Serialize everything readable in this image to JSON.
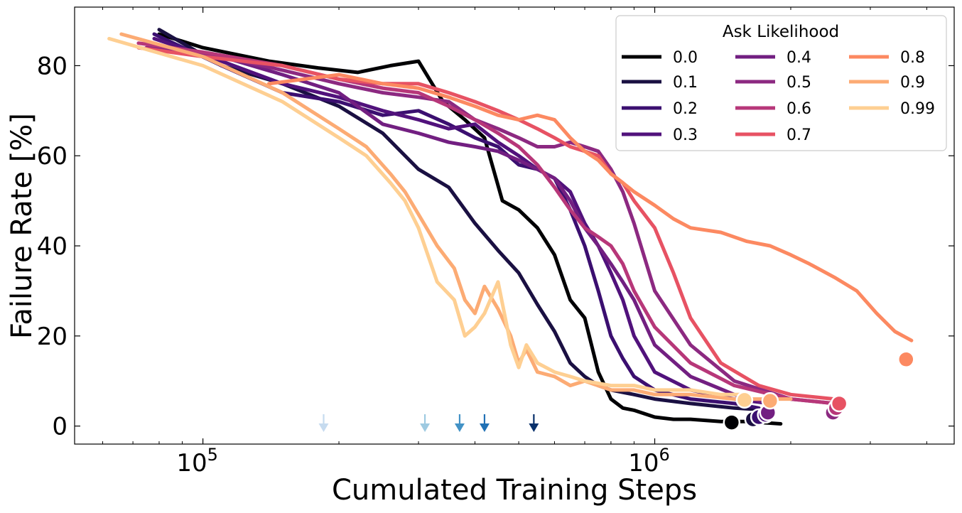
{
  "chart_data": {
    "type": "line",
    "xlabel": "Cumulated Training Steps",
    "ylabel": "Failure Rate [%]",
    "xscale": "log",
    "xlim": [
      52000,
      4600000
    ],
    "ylim": [
      -4,
      93
    ],
    "yticks": [
      0,
      20,
      40,
      60,
      80
    ],
    "ytick_labels": [
      "0",
      "20",
      "40",
      "60",
      "80"
    ],
    "xticks_major": [
      100000,
      1000000
    ],
    "xtick_labels": [
      "10^5",
      "10^6"
    ],
    "grid": false,
    "legend": {
      "title": "Ask Likelihood",
      "placement": "top-right",
      "columns": 3
    },
    "series": [
      {
        "name": "0.0",
        "color": "#000004",
        "x": [
          80000,
          100000,
          140000,
          180000,
          220000,
          260000,
          300000,
          340000,
          380000,
          420000,
          460000,
          500000,
          550000,
          600000,
          650000,
          700000,
          750000,
          800000,
          850000,
          900000,
          1000000,
          1100000,
          1200000,
          1400000,
          1600000,
          1900000
        ],
        "y": [
          87,
          84,
          81,
          79.5,
          78.5,
          80,
          81,
          72,
          68,
          64,
          50,
          48,
          44,
          38,
          28,
          24,
          12,
          6,
          4,
          3.5,
          2,
          1.5,
          1.5,
          1,
          1,
          0.5
        ],
        "end_marker": [
          1480000,
          0.8
        ]
      },
      {
        "name": "0.1",
        "color": "#1a1042",
        "x": [
          80000,
          110000,
          150000,
          200000,
          250000,
          300000,
          350000,
          400000,
          450000,
          500000,
          550000,
          600000,
          650000,
          700000,
          750000,
          800000,
          900000,
          1000000,
          1200000,
          1500000,
          1800000
        ],
        "y": [
          88,
          80,
          76,
          71,
          65,
          57,
          53,
          45,
          39,
          34,
          27,
          21,
          14,
          11,
          9,
          8,
          7,
          6,
          5,
          4,
          3.5
        ],
        "end_marker": [
          1650000,
          1.5
        ]
      },
      {
        "name": "0.2",
        "color": "#3b0f70",
        "x": [
          78000,
          110000,
          150000,
          200000,
          250000,
          300000,
          350000,
          400000,
          450000,
          500000,
          550000,
          600000,
          650000,
          700000,
          750000,
          800000,
          850000,
          900000,
          1000000,
          1200000,
          1500000,
          1700000
        ],
        "y": [
          87,
          80,
          74,
          72,
          69,
          70,
          67,
          64,
          62,
          58,
          57,
          55,
          48,
          40,
          30,
          20,
          15,
          11,
          8,
          6,
          5,
          4
        ],
        "end_marker": [
          1700000,
          2.0
        ]
      },
      {
        "name": "0.3",
        "color": "#51127c",
        "x": [
          78000,
          110000,
          150000,
          200000,
          250000,
          300000,
          350000,
          400000,
          450000,
          500000,
          550000,
          600000,
          650000,
          700000,
          750000,
          800000,
          850000,
          900000,
          1000000,
          1200000,
          1500000,
          1800000
        ],
        "y": [
          86,
          81,
          76,
          73,
          70,
          68,
          66,
          67,
          63,
          60,
          57,
          55,
          52,
          45,
          40,
          34,
          28,
          20,
          12,
          8,
          6,
          5
        ],
        "end_marker": [
          1760000,
          2.5
        ]
      },
      {
        "name": "0.4",
        "color": "#721f81",
        "x": [
          75000,
          110000,
          150000,
          200000,
          250000,
          300000,
          350000,
          400000,
          450000,
          500000,
          550000,
          600000,
          650000,
          700000,
          750000,
          800000,
          850000,
          900000,
          1000000,
          1200000,
          1500000,
          1800000
        ],
        "y": [
          85,
          82,
          78,
          74,
          67,
          65,
          63,
          62,
          61,
          59,
          57,
          55,
          50,
          44,
          40,
          36,
          32,
          28,
          18,
          11,
          7,
          5
        ],
        "end_marker": [
          1780000,
          3.0
        ]
      },
      {
        "name": "0.5",
        "color": "#8c2981",
        "x": [
          75000,
          110000,
          150000,
          200000,
          250000,
          300000,
          350000,
          400000,
          450000,
          500000,
          550000,
          600000,
          650000,
          700000,
          750000,
          800000,
          850000,
          900000,
          1000000,
          1200000,
          1500000,
          2000000,
          2500000
        ],
        "y": [
          84,
          82,
          79,
          76,
          74,
          73,
          72,
          68,
          66,
          64,
          62,
          62,
          63,
          62,
          61,
          57,
          52,
          45,
          30,
          18,
          10,
          6,
          5
        ],
        "end_marker": [
          2480000,
          3.0
        ]
      },
      {
        "name": "0.6",
        "color": "#b73779",
        "x": [
          72000,
          100000,
          150000,
          200000,
          250000,
          300000,
          350000,
          400000,
          450000,
          500000,
          550000,
          600000,
          650000,
          700000,
          750000,
          800000,
          850000,
          900000,
          1000000,
          1200000,
          1500000,
          2000000,
          2500000
        ],
        "y": [
          85,
          83,
          80,
          77,
          75,
          74,
          71,
          68,
          65,
          62,
          58,
          53,
          48,
          44,
          42,
          40,
          36,
          30,
          22,
          14,
          9,
          6,
          5
        ],
        "end_marker": [
          2520000,
          4.0
        ]
      },
      {
        "name": "0.7",
        "color": "#e75263",
        "x": [
          72000,
          100000,
          150000,
          200000,
          250000,
          300000,
          350000,
          400000,
          450000,
          500000,
          550000,
          600000,
          650000,
          700000,
          750000,
          800000,
          850000,
          900000,
          1000000,
          1100000,
          1200000,
          1400000,
          1700000,
          2000000,
          2500000
        ],
        "y": [
          84,
          82,
          80,
          77,
          76,
          76,
          74,
          72,
          70,
          68,
          66,
          64,
          62,
          61,
          60,
          56,
          54,
          50,
          44,
          34,
          24,
          14,
          9,
          7,
          6
        ],
        "end_marker": [
          2560000,
          5.0
        ]
      },
      {
        "name": "0.8",
        "color": "#fc8961",
        "x": [
          140000,
          200000,
          250000,
          300000,
          350000,
          400000,
          450000,
          500000,
          550000,
          600000,
          650000,
          700000,
          750000,
          800000,
          850000,
          900000,
          1000000,
          1100000,
          1200000,
          1400000,
          1600000,
          1800000,
          2000000,
          2200000,
          2500000,
          2800000,
          3100000,
          3400000,
          3700000
        ],
        "y": [
          76,
          78,
          76,
          75,
          73,
          71,
          69,
          68,
          69,
          68,
          64,
          61,
          59,
          56,
          54,
          52,
          49,
          46,
          44,
          43,
          41,
          40,
          38,
          36,
          33,
          30,
          25,
          21,
          19
        ],
        "end_marker": [
          3600000,
          14.8
        ]
      },
      {
        "name": "0.9",
        "color": "#fcab74",
        "x": [
          66000,
          100000,
          150000,
          200000,
          230000,
          260000,
          280000,
          300000,
          330000,
          360000,
          380000,
          400000,
          420000,
          450000,
          480000,
          500000,
          520000,
          550000,
          600000,
          650000,
          700000,
          800000,
          900000,
          1000000,
          1200000,
          1500000,
          1800000,
          2000000
        ],
        "y": [
          87,
          82,
          74,
          66,
          62,
          56,
          52,
          47,
          40,
          35,
          28,
          25,
          31,
          26,
          20,
          14,
          17,
          12,
          11,
          9,
          10,
          8,
          8,
          7,
          7,
          6,
          6,
          6
        ],
        "end_marker": [
          1800000,
          5.6
        ]
      },
      {
        "name": "0.99",
        "color": "#fecf92",
        "x": [
          62000,
          100000,
          150000,
          200000,
          230000,
          260000,
          280000,
          300000,
          330000,
          360000,
          380000,
          400000,
          420000,
          450000,
          480000,
          500000,
          520000,
          550000,
          600000,
          650000,
          700000,
          800000,
          900000,
          1000000,
          1200000,
          1400000,
          1600000
        ],
        "y": [
          86,
          80,
          72,
          64,
          60,
          54,
          50,
          44,
          32,
          28,
          20,
          22,
          25,
          32,
          18,
          13,
          18,
          14,
          12,
          11,
          10,
          9,
          9,
          8,
          8,
          7,
          7
        ],
        "end_marker": [
          1580000,
          5.8
        ]
      }
    ],
    "arrows": {
      "x": [
        185000,
        310000,
        370000,
        420000,
        540000
      ],
      "colors": [
        "#c6dbef",
        "#9ecae1",
        "#4292c6",
        "#2171b5",
        "#08306b"
      ]
    }
  }
}
